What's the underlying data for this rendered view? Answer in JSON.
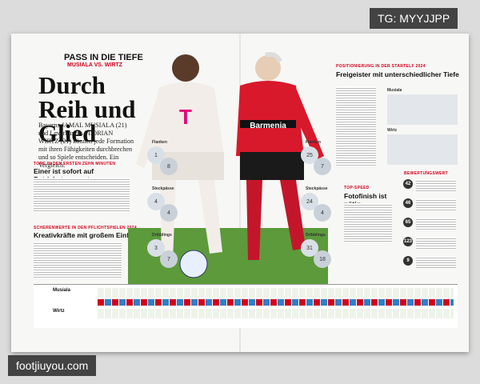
{
  "watermarks": {
    "top": "TG: MYYJJPP",
    "bottom": "footjiuyou.com"
  },
  "left_page": {
    "kicker": "PASS IN DIE TIEFE",
    "subkicker": "MUSIALA VS. WIRTZ",
    "title": "Durch Reih und Glied",
    "lead": "Bayerns JAMAL MUSIALA (21) und Leverkusens FLORIAN WIRTZ (21) können jede Formation mit ihren Fähigkeiten durchbrechen und so Spiele entscheiden. Ein Vergleich.",
    "goals_section": {
      "label": "TORE IN DEN ERSTEN ZEHN MINUTEN",
      "title": "Einer ist sofort auf Betriebstemperatur"
    },
    "creative_section": {
      "label": "SCHERENWERTE IN DEN PFLICHTSPIELEN 2024",
      "title": "Kreativkräfte mit großem Einfluss"
    }
  },
  "comparison": [
    {
      "label": "Flanken",
      "left": [
        1,
        8
      ],
      "right": [
        25,
        7
      ]
    },
    {
      "label": "Steckpässe",
      "left": [
        4,
        4
      ],
      "right": [
        24,
        4
      ]
    },
    {
      "label": "Dribblings",
      "left": [
        3,
        7
      ],
      "right": [
        31,
        18
      ]
    }
  ],
  "right_page": {
    "positioning_label": "POSITIONIERUNG IN DER STARTELF 2024",
    "positioning_title": "Freigeister mit unterschiedlicher Tiefe",
    "formations": [
      "Musiala",
      "Wirtz"
    ],
    "speed_label": "TOP-SPEED",
    "speed_title": "Fotofinish ist nötig",
    "rating_label": "BEWERTUNGSWERT",
    "ratings": [
      42,
      46,
      65,
      123,
      9
    ]
  },
  "table": {
    "players": [
      "Musiala",
      "Wirtz"
    ]
  }
}
